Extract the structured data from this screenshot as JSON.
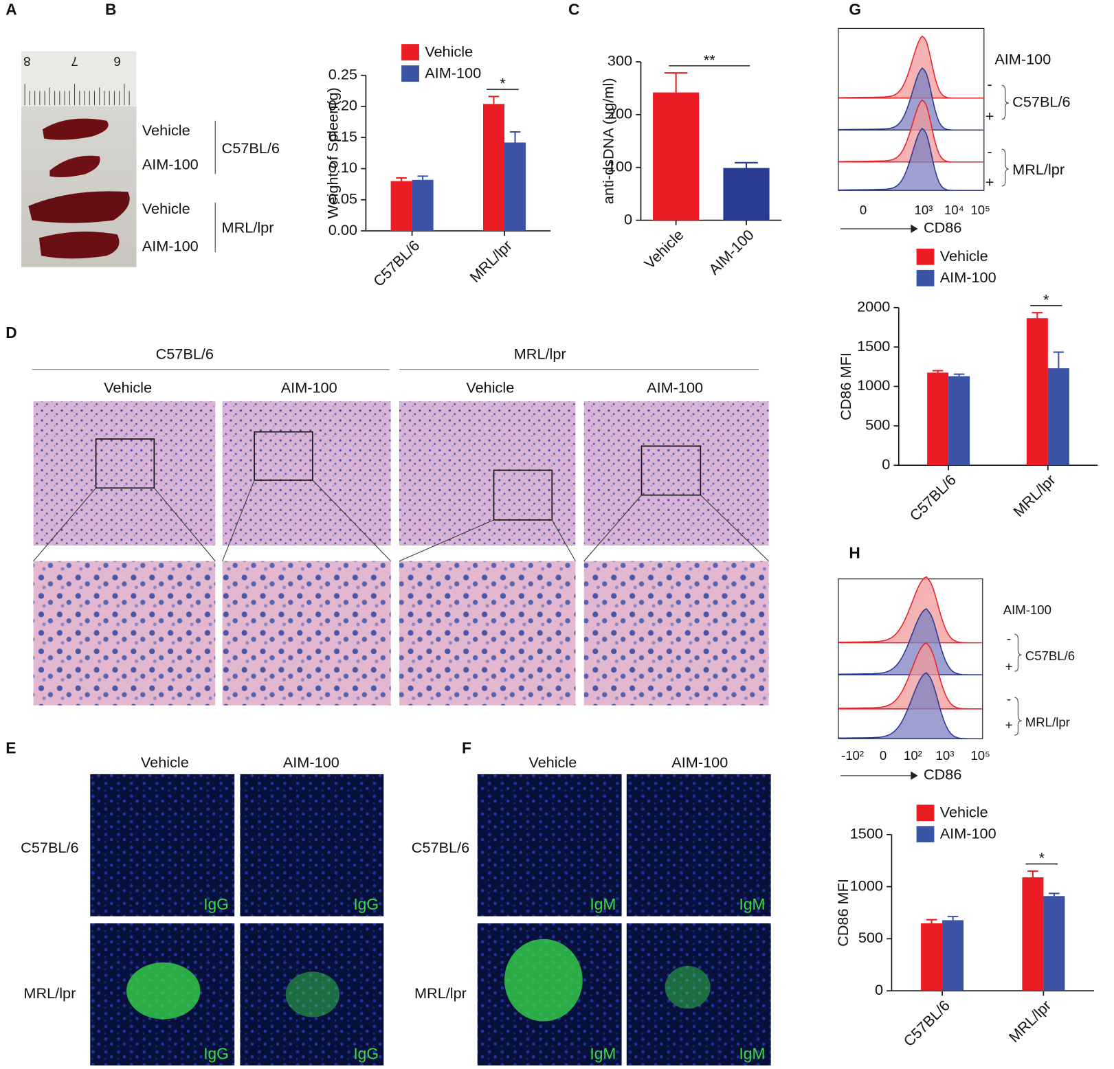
{
  "panel_labels": [
    "A",
    "B",
    "C",
    "D",
    "E",
    "F",
    "G",
    "H"
  ],
  "panel_a": {
    "ruler_labels": [
      "8",
      "7",
      "6"
    ],
    "treatments": [
      "Vehicle",
      "AIM-100",
      "Vehicle",
      "AIM-100"
    ],
    "strains": [
      "C57BL/6",
      "MRL/lpr"
    ]
  },
  "panel_d": {
    "strains": [
      "C57BL/6",
      "MRL/lpr"
    ],
    "treatments": [
      "Vehicle",
      "AIM-100",
      "Vehicle",
      "AIM-100"
    ]
  },
  "panel_e": {
    "columns": [
      "Vehicle",
      "AIM-100"
    ],
    "rows": [
      "C57BL/6",
      "MRL/lpr"
    ],
    "stain": "IgG"
  },
  "panel_f": {
    "columns": [
      "Vehicle",
      "AIM-100"
    ],
    "rows": [
      "C57BL/6",
      "MRL/lpr"
    ],
    "stain": "IgM"
  },
  "panel_g_histogram": {
    "group_label": "AIM-100",
    "signs": [
      "-",
      "+",
      "-",
      "+"
    ],
    "strains": [
      "C57BL/6",
      "MRL/lpr"
    ],
    "x_label": "CD86",
    "x_tick_labels": [
      "0",
      "10³",
      "10⁴",
      "10⁵"
    ]
  },
  "panel_h_histogram": {
    "group_label": "AIM-100",
    "signs": [
      "-",
      "+",
      "-",
      "+"
    ],
    "strains": [
      "C57BL/6",
      "MRL/lpr"
    ],
    "x_label": "CD86",
    "x_tick_labels": [
      "-10²",
      "0",
      "10²",
      "10³",
      "10⁵"
    ]
  },
  "chart_data": [
    {
      "type": "bar",
      "y_label": "Weight of Spleen(g)",
      "categories": [
        "C57BL/6",
        "MRL/lpr"
      ],
      "series": [
        {
          "name": "Vehicle",
          "color": "#ec1c24",
          "values": [
            0.08,
            0.204
          ],
          "errors": [
            0.005,
            0.012
          ]
        },
        {
          "name": "AIM-100",
          "color": "#3a53a4",
          "values": [
            0.082,
            0.142
          ],
          "errors": [
            0.006,
            0.017
          ]
        }
      ],
      "ylim": [
        0,
        0.25
      ],
      "yticks": [
        {
          "value": 0,
          "label": "0.00"
        },
        {
          "value": 0.05,
          "label": "0.05"
        },
        {
          "value": 0.1,
          "label": "0.10"
        },
        {
          "value": 0.15,
          "label": "0.15"
        },
        {
          "value": 0.2,
          "label": "0.20"
        },
        {
          "value": 0.25,
          "label": "0.25"
        }
      ],
      "significance": "*",
      "significance_category": "MRL/lpr"
    },
    {
      "type": "bar",
      "y_label": "anti-dsDNA (μg/ml)",
      "categories": [
        "Vehicle",
        "AIM-100"
      ],
      "values": [
        242,
        99
      ],
      "errors": [
        37,
        10
      ],
      "colors": [
        "#ec1c24",
        "#283b93"
      ],
      "ylim": [
        0,
        300
      ],
      "yticks": [
        0,
        100,
        200,
        300
      ],
      "significance": "**"
    },
    {
      "type": "bar",
      "y_label": "CD86 MFI",
      "categories": [
        "C57BL/6",
        "MRL/lpr"
      ],
      "series": [
        {
          "name": "Vehicle",
          "color": "#ec1c24",
          "values": [
            1175,
            1865
          ],
          "errors": [
            25,
            70
          ]
        },
        {
          "name": "AIM-100",
          "color": "#3a53a4",
          "values": [
            1130,
            1230
          ],
          "errors": [
            25,
            205
          ]
        }
      ],
      "ylim": [
        0,
        2000
      ],
      "yticks": [
        0,
        500,
        1000,
        1500,
        2000
      ],
      "significance": "*",
      "significance_category": "MRL/lpr"
    },
    {
      "type": "bar",
      "y_label": "CD86 MFI",
      "categories": [
        "C57BL/6",
        "MRL/lpr"
      ],
      "series": [
        {
          "name": "Vehicle",
          "color": "#ec1c24",
          "values": [
            648,
            1090
          ],
          "errors": [
            35,
            60
          ]
        },
        {
          "name": "AIM-100",
          "color": "#3a53a4",
          "values": [
            678,
            910
          ],
          "errors": [
            35,
            25
          ]
        }
      ],
      "ylim": [
        0,
        1500
      ],
      "yticks": [
        0,
        500,
        1000,
        1500
      ],
      "significance": "*",
      "significance_category": "MRL/lpr"
    }
  ]
}
